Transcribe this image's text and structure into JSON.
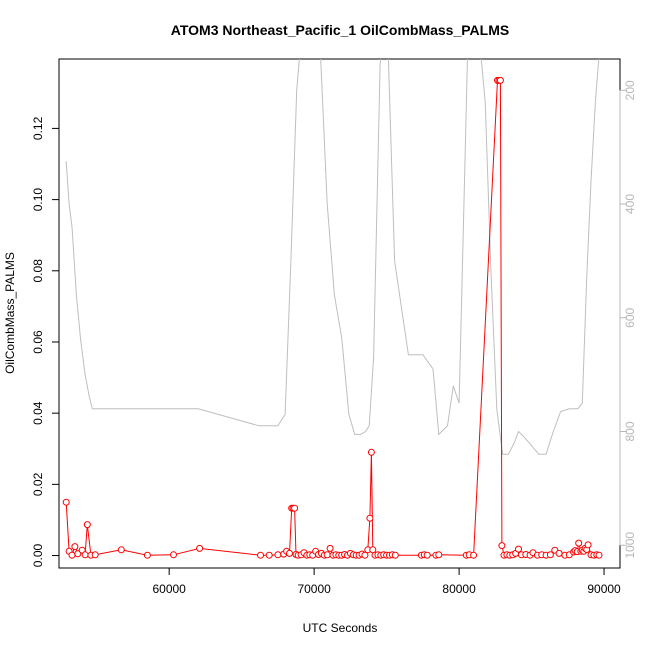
{
  "chart_data": {
    "type": "line",
    "title": "ATOM3 Northeast_Pacific_1 OilCombMass_PALMS",
    "xlabel": "UTC Seconds",
    "ylabel": "OilCombMass_PALMS",
    "xlim": [
      52400,
      91100
    ],
    "ylim": [
      -0.0035,
      0.1395
    ],
    "xticks": [
      60000,
      70000,
      80000,
      90000
    ],
    "yticks": [
      0.0,
      0.02,
      0.04,
      0.06,
      0.08,
      0.1,
      0.12
    ],
    "ytick_labels": [
      "0.00",
      "0.02",
      "0.04",
      "0.06",
      "0.08",
      "0.10",
      "0.12"
    ],
    "y2lim": [
      1040,
      145
    ],
    "y2ticks": [
      200,
      400,
      600,
      800,
      1000
    ],
    "y2_reversed": true,
    "grid": false,
    "colors": {
      "series": "#ff0000",
      "secondary": "#bebebe",
      "axes": "#000000",
      "secondary_ticks": "#b8b8b8"
    },
    "series": [
      {
        "marker": "open-circle",
        "x": [
          52900,
          53100,
          53300,
          53500,
          53700,
          54000,
          54200,
          54350,
          54600,
          54900,
          56700,
          58500,
          60300,
          62100,
          66300,
          66900,
          67500,
          67900,
          68100,
          68300,
          68450,
          68550,
          68650,
          68750,
          68900,
          69100,
          69300,
          69500,
          69700,
          69900,
          70100,
          70300,
          70500,
          70700,
          70900,
          71100,
          71300,
          71500,
          71700,
          71900,
          72100,
          72300,
          72500,
          72700,
          72900,
          73100,
          73300,
          73500,
          73700,
          73850,
          73950,
          74050,
          74200,
          74400,
          74600,
          74800,
          75000,
          75200,
          75400,
          75600,
          77400,
          77600,
          77800,
          78400,
          78600,
          80500,
          80700,
          81000,
          82650,
          82750,
          82850,
          82950,
          83100,
          83300,
          83500,
          83700,
          83900,
          84100,
          84300,
          84600,
          84900,
          85100,
          85400,
          85700,
          86000,
          86300,
          86600,
          86900,
          87300,
          87600,
          87900,
          88000,
          88150,
          88250,
          88400,
          88500,
          88600,
          88700,
          88800,
          88900,
          89100,
          89300,
          89500,
          89650
        ],
        "y": [
          0.015,
          0.0012,
          0.0001,
          0.0025,
          0.0005,
          0.0015,
          0.0002,
          0.0087,
          0.0001,
          0.0002,
          0.0016,
          0.0001,
          0.0002,
          0.002,
          0.0001,
          0.0001,
          0.0002,
          0.0004,
          0.0012,
          0.0006,
          0.0133,
          0.0133,
          0.0133,
          0.0003,
          0.0001,
          0.0002,
          0.0008,
          0.0001,
          0.0002,
          0.0001,
          0.0012,
          0.0003,
          0.0006,
          0.0001,
          0.0002,
          0.002,
          0.0001,
          0.0002,
          0.0001,
          0.0001,
          0.0003,
          0.0001,
          0.0006,
          0.0002,
          0.0001,
          0.0001,
          0.0004,
          0.0001,
          0.0016,
          0.0105,
          0.029,
          0.0016,
          0.0001,
          0.0002,
          0.0001,
          0.0002,
          0.0001,
          0.0001,
          0.0002,
          0.0001,
          0.0001,
          0.0002,
          0.0001,
          0.0001,
          0.0002,
          0.0001,
          0.0002,
          0.0001,
          0.1335,
          0.1335,
          0.1335,
          0.0028,
          0.0001,
          0.0002,
          0.0001,
          0.0002,
          0.0006,
          0.0018,
          0.0002,
          0.0003,
          0.0001,
          0.0008,
          0.0001,
          0.0002,
          0.0001,
          0.0002,
          0.0015,
          0.0006,
          0.0001,
          0.0002,
          0.001,
          0.0014,
          0.0011,
          0.0035,
          0.0012,
          0.0015,
          0.0012,
          0.002,
          0.0017,
          0.003,
          0.0002,
          0.0001,
          0.0002,
          0.0001
        ]
      },
      {
        "marker": "none",
        "axis": "right",
        "x": [
          52900,
          53100,
          53300,
          53600,
          53900,
          54200,
          54500,
          54700,
          54900,
          56500,
          60000,
          62000,
          66200,
          67500,
          68000,
          68400,
          68800,
          69300,
          69800,
          70300,
          70900,
          71400,
          71900,
          72400,
          72800,
          73200,
          73550,
          73800,
          74100,
          74550,
          75000,
          75550,
          76500,
          77500,
          78200,
          78600,
          79200,
          79600,
          80000,
          80600,
          81000,
          81400,
          81800,
          82200,
          82600,
          83000,
          83400,
          83800,
          84100,
          84500,
          85000,
          85500,
          86000,
          86500,
          87000,
          87600,
          87900,
          88200,
          88500,
          88800,
          89100,
          89400,
          89800
        ],
        "y": [
          325,
          400,
          440,
          560,
          640,
          700,
          740,
          760,
          760,
          760,
          760,
          760,
          790,
          790,
          770,
          500,
          200,
          50,
          30,
          60,
          400,
          560,
          635,
          770,
          805,
          805,
          800,
          790,
          670,
          155,
          40,
          500,
          665,
          665,
          690,
          805,
          790,
          720,
          750,
          120,
          40,
          110,
          220,
          520,
          760,
          840,
          840,
          820,
          800,
          810,
          825,
          840,
          840,
          800,
          765,
          760,
          760,
          760,
          750,
          530,
          360,
          220,
          90
        ]
      }
    ]
  }
}
